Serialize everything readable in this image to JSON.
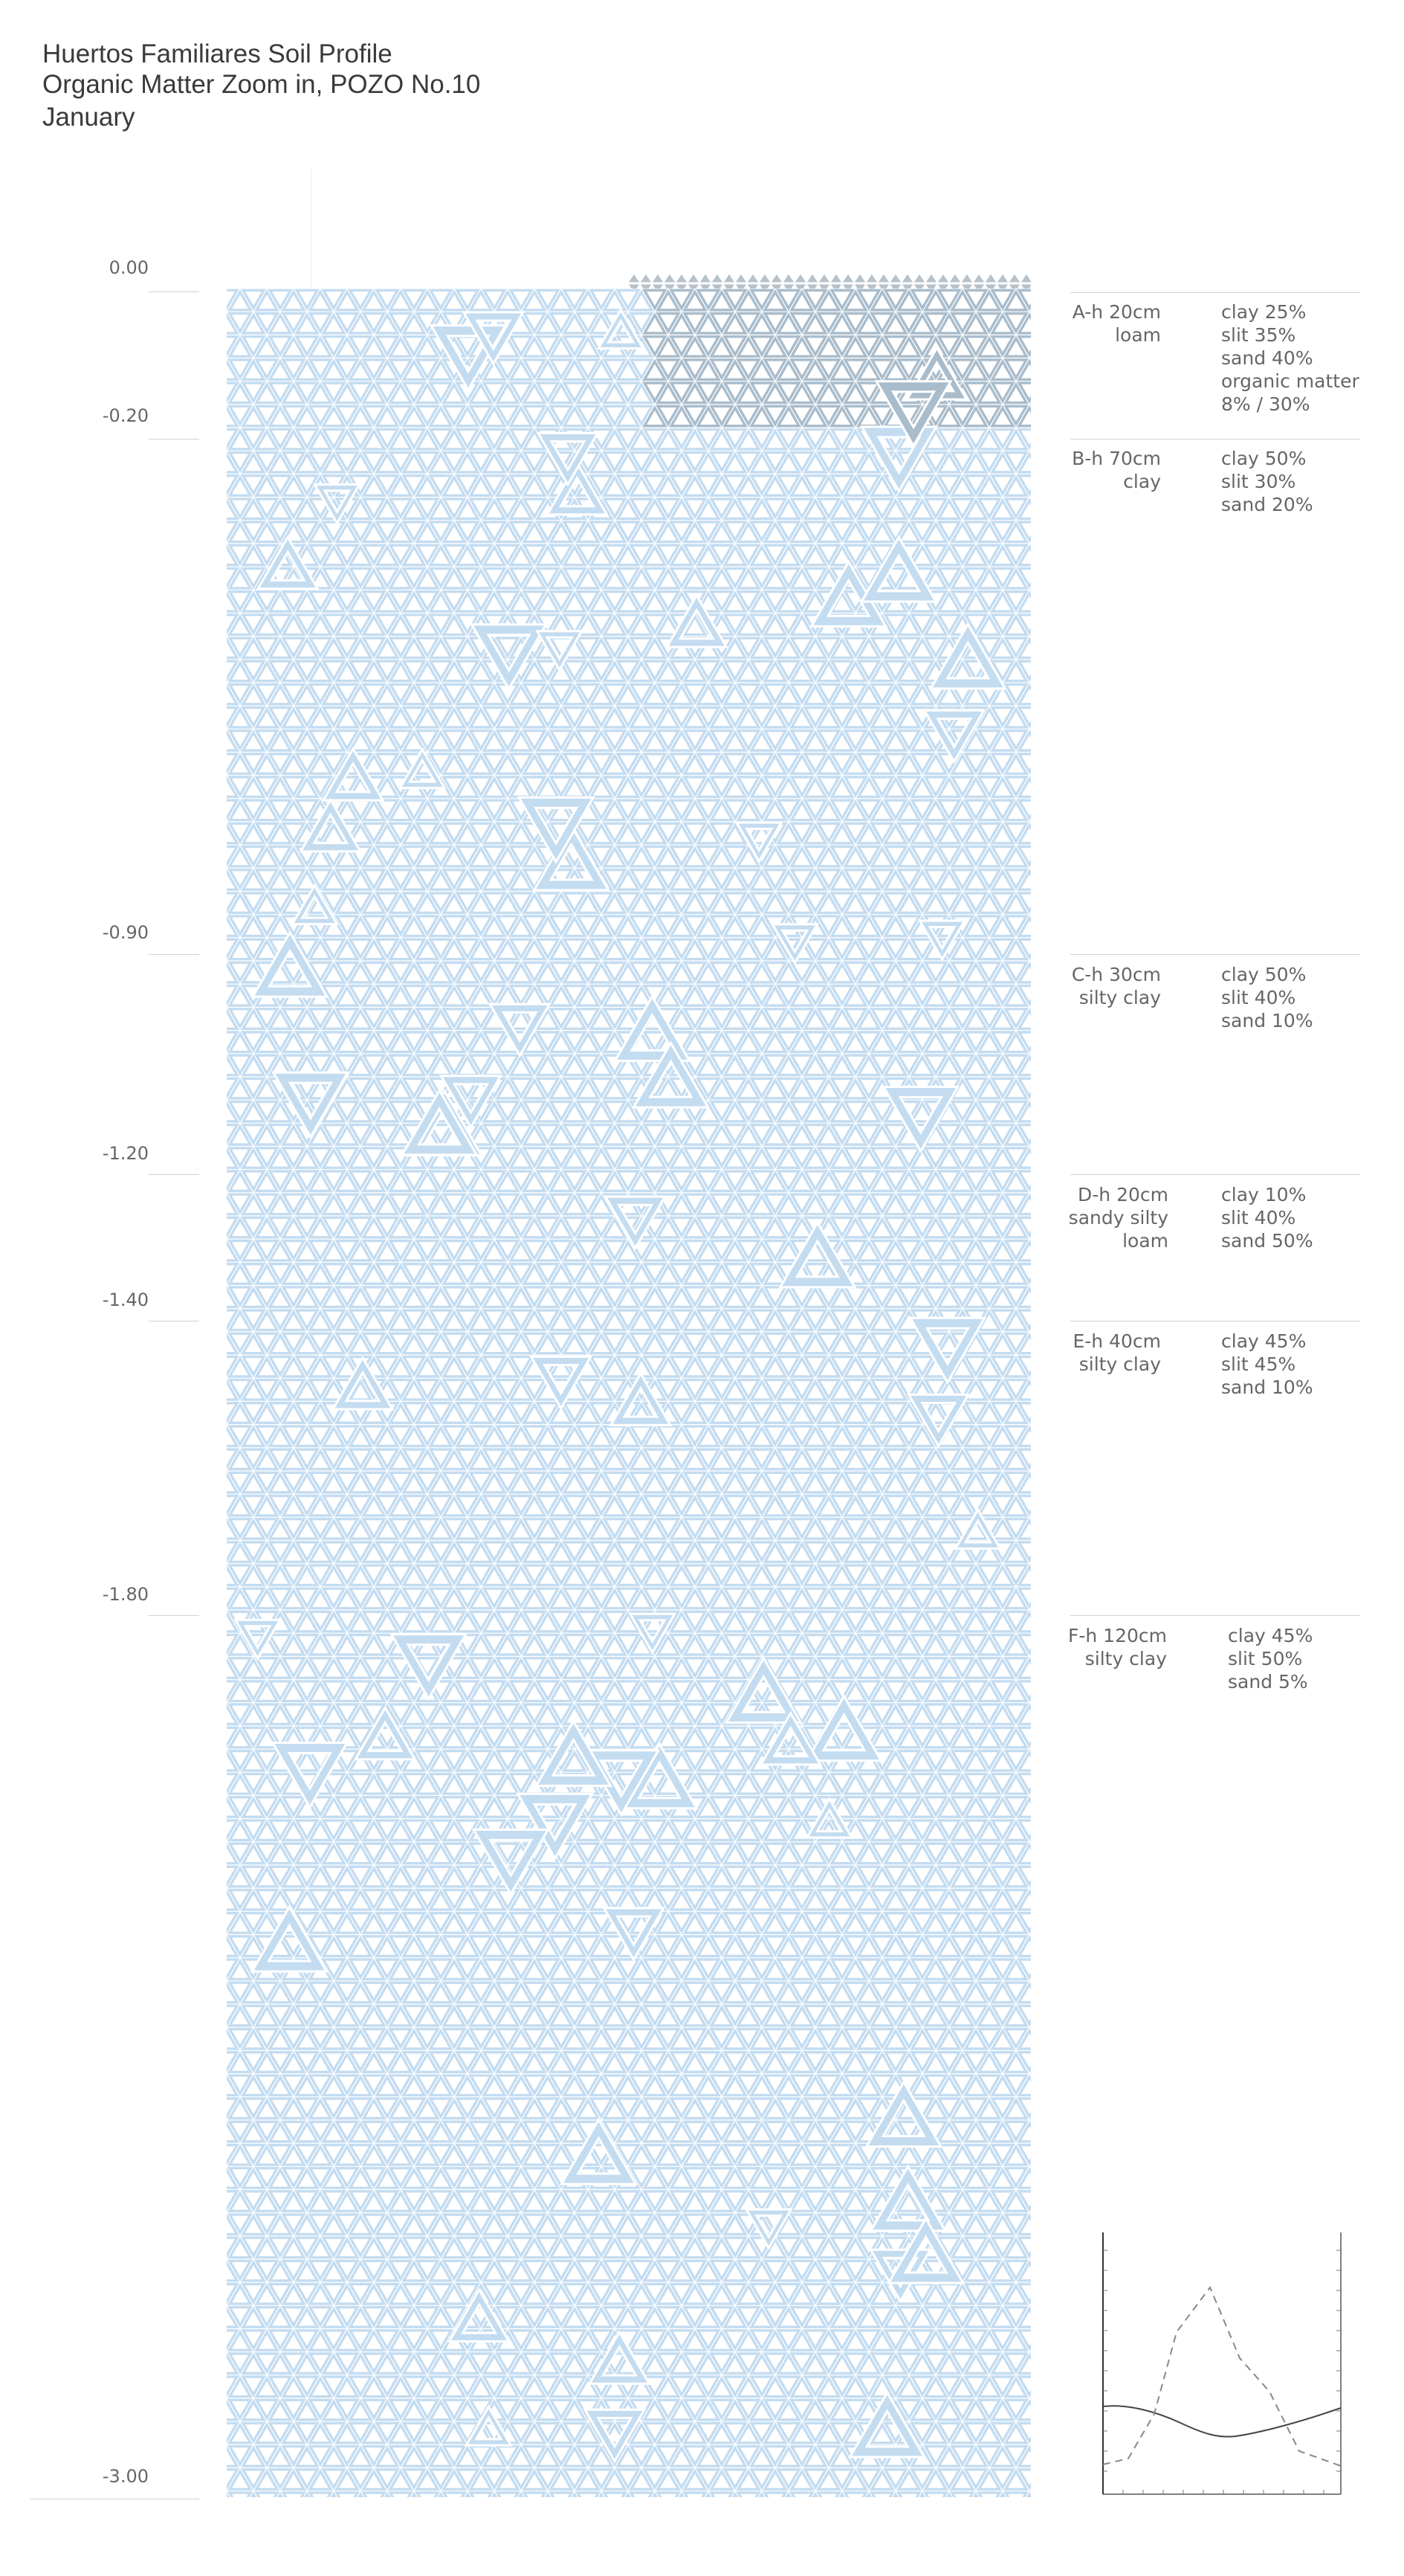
{
  "title": {
    "line1": "Huertos Familiares Soil Profile",
    "line2": "Organic Matter Zoom in, POZO No.10",
    "line3": "January"
  },
  "depths": [
    "0.00",
    "-0.20",
    "-0.90",
    "-1.20",
    "-1.40",
    "-1.80",
    "-3.00"
  ],
  "horizons": [
    {
      "name": "A-h 20cm\nloam",
      "composition": "clay 25%\nslit 35%\nsand 40%\norganic matter\n8% / 30%"
    },
    {
      "name": "B-h 70cm\nclay",
      "composition": "clay 50%\nslit 30%\nsand 20%"
    },
    {
      "name": "C-h 30cm\nsilty clay",
      "composition": "clay 50%\nslit 40%\nsand 10%"
    },
    {
      "name": "D-h 20cm\nsandy silty\nloam",
      "composition": "clay 10%\nslit 40%\nsand 50%"
    },
    {
      "name": "E-h 40cm\nsilty clay",
      "composition": "clay 45%\nslit 45%\nsand 10%"
    },
    {
      "name": "F-h 120cm\nsilty clay",
      "composition": "clay 45%\nslit 50%\nsand 5%"
    }
  ],
  "colors": {
    "soil_pattern": "#c4dcf0",
    "organic_pattern": "#a9bccb",
    "crust_pattern": "#b8c2ca",
    "rule": "#d2d2d2",
    "text": "#666666"
  }
}
